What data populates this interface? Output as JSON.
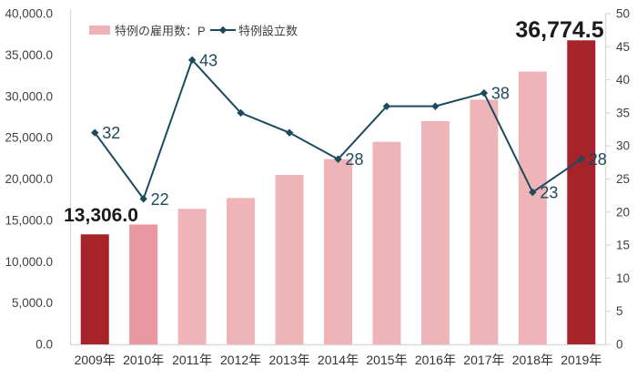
{
  "chart_data": {
    "type": "combo-bar-line",
    "categories": [
      "2009年",
      "2010年",
      "2011年",
      "2012年",
      "2013年",
      "2014年",
      "2015年",
      "2016年",
      "2017年",
      "2018年",
      "2019年"
    ],
    "series": [
      {
        "name": "特例の雇用数：P",
        "type": "bar",
        "axis": "left",
        "values": [
          13306.0,
          14500,
          16400,
          17700,
          20500,
          22400,
          24500,
          27000,
          29600,
          33000,
          36774.5
        ],
        "bar_colors": [
          "#A52329",
          "#E8989E",
          "#EFB4B8",
          "#EFB4B8",
          "#EFB4B8",
          "#EFB4B8",
          "#EFB4B8",
          "#EFB4B8",
          "#EFB4B8",
          "#EFB4B8",
          "#A52329"
        ],
        "data_labels": {
          "0": "13,306.0",
          "10": "36,774.5"
        }
      },
      {
        "name": "特例設立数",
        "type": "line",
        "axis": "right",
        "color": "#1C4A5E",
        "values": [
          32,
          22,
          43,
          35,
          32,
          28,
          36,
          36,
          38,
          23,
          28
        ],
        "data_labels": {
          "0": "32",
          "1": "22",
          "2": "43",
          "5": "28",
          "8": "38",
          "9": "23",
          "10": "28"
        }
      }
    ],
    "left_axis": {
      "min": 0,
      "max": 40000,
      "step": 5000,
      "tick_labels": [
        "0.0",
        "5,000.0",
        "10,000.0",
        "15,000.0",
        "20,000.0",
        "25,000.0",
        "30,000.0",
        "35,000.0",
        "40,000.0"
      ]
    },
    "right_axis": {
      "min": 0,
      "max": 50,
      "step": 5,
      "tick_labels": [
        "0",
        "5",
        "10",
        "15",
        "20",
        "25",
        "30",
        "35",
        "40",
        "45",
        "50"
      ]
    },
    "legend": {
      "items": [
        {
          "symbol": "bar-swatch",
          "label": "特例の雇用数：P",
          "color": "#EFB4B8"
        },
        {
          "symbol": "line-marker",
          "label": "特例設立数",
          "color": "#1C4A5E"
        }
      ]
    },
    "grid": false,
    "colors": {
      "bar_highlight": "#A52329",
      "bar_medium": "#E8989E",
      "bar_light": "#EFB4B8",
      "line": "#1C4A5E",
      "axis_line": "#D9D9D9",
      "axis_text": "#404040",
      "category_text": "#333333",
      "big_label_text": "#1A1A1A",
      "background": "#FFFFFF"
    }
  }
}
